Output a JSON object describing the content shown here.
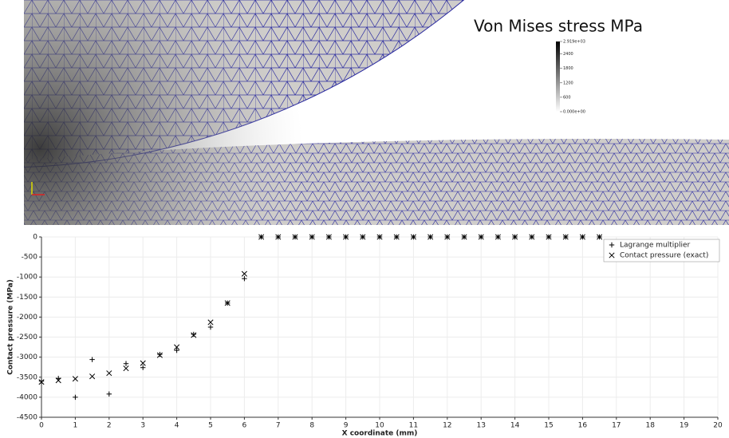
{
  "render": {
    "colorbar": {
      "title": "Von Mises stress MPa",
      "lim": [
        0,
        2919
      ],
      "ticks": [
        {
          "value": 2919,
          "label": "2.919e+03"
        },
        2400,
        1800,
        1200,
        600,
        {
          "value": 0,
          "label": "0.000e+00"
        }
      ]
    }
  },
  "chart_data": {
    "type": "scatter",
    "x_label": "X coordinate (mm)",
    "y_label": "Contact pressure (MPa)",
    "x": [
      0,
      0.5,
      1,
      1.5,
      2,
      2.5,
      3,
      3.5,
      4,
      4.5,
      5,
      5.5,
      6,
      6.5,
      7,
      7.5,
      8,
      8.5,
      9,
      9.5,
      10,
      10.5,
      11,
      11.5,
      12,
      12.5,
      13,
      13.5,
      14,
      14.5,
      15,
      15.5,
      16,
      16.5
    ],
    "series": [
      {
        "name": "Lagrange multiplier",
        "marker": "plus",
        "color": "#000000",
        "values": [
          -3600,
          -3530,
          -4000,
          -3060,
          -3920,
          -3160,
          -3260,
          -2930,
          -2830,
          -2430,
          -2250,
          -1650,
          -1040,
          0,
          0,
          0,
          0,
          0,
          0,
          0,
          0,
          0,
          0,
          0,
          0,
          0,
          0,
          0,
          0,
          0,
          0,
          0,
          0,
          0
        ]
      },
      {
        "name": "Contact pressure (exact)",
        "marker": "cross",
        "color": "#000000",
        "values": [
          -3620,
          -3580,
          -3540,
          -3480,
          -3400,
          -3280,
          -3150,
          -2950,
          -2750,
          -2450,
          -2130,
          -1650,
          -920,
          0,
          0,
          0,
          0,
          0,
          0,
          0,
          0,
          0,
          0,
          0,
          0,
          0,
          0,
          0,
          0,
          0,
          0,
          0,
          0,
          0
        ]
      }
    ],
    "xlim": [
      0,
      20
    ],
    "xticks": [
      0,
      1,
      2,
      3,
      4,
      5,
      6,
      7,
      8,
      9,
      10,
      11,
      12,
      13,
      14,
      15,
      16,
      17,
      18,
      19,
      20
    ],
    "ylim": [
      -4500,
      0
    ],
    "yticks": [
      -4500,
      -4000,
      -3500,
      -3000,
      -2500,
      -2000,
      -1500,
      -1000,
      -500,
      0
    ],
    "grid": true,
    "legend": "top-right"
  }
}
